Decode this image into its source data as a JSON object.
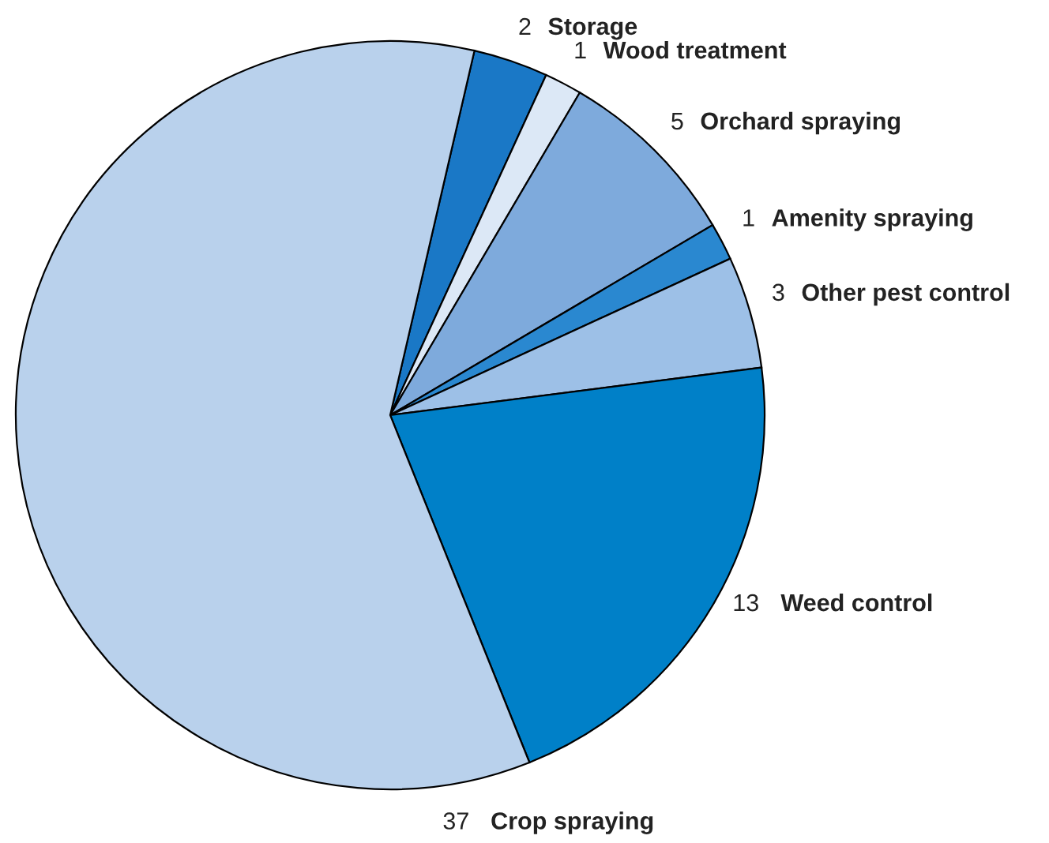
{
  "chart_data": {
    "type": "pie",
    "categories": [
      "Storage",
      "Wood treatment",
      "Orchard spraying",
      "Amenity spraying",
      "Other pest control",
      "Weed control",
      "Crop spraying"
    ],
    "values": [
      2,
      1,
      5,
      1,
      3,
      13,
      37
    ],
    "colors": [
      "#1a78c6",
      "#dce8f6",
      "#7eaadc",
      "#2a88d0",
      "#9dc0e7",
      "#0080c8",
      "#b9d1ec"
    ],
    "data_labels": true,
    "legend": false
  }
}
